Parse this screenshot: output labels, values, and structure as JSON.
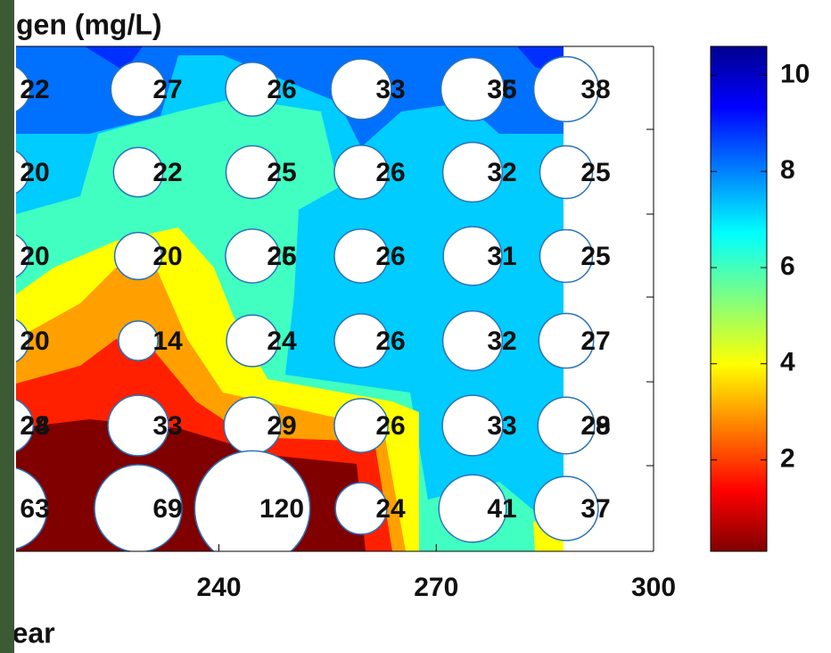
{
  "chart_data": {
    "type": "bubble",
    "title": "gen (mg/L)",
    "xlabel": "Year",
    "xlim": [
      212,
      300
    ],
    "xticks": [
      240,
      270,
      300
    ],
    "colorbar": {
      "lim": [
        0.1,
        10.6
      ],
      "ticks": [
        2,
        4,
        6,
        8,
        10
      ]
    },
    "bubble_labels": [
      [
        [
          22
        ],
        [
          27
        ],
        [
          26
        ],
        [
          33
        ],
        [
          36,
          35
        ],
        [
          38
        ]
      ],
      [
        [
          20
        ],
        [
          22
        ],
        [
          25
        ],
        [
          26
        ],
        [
          32
        ],
        [
          25
        ]
      ],
      [
        [
          20
        ],
        [
          20
        ],
        [
          26,
          25
        ],
        [
          26
        ],
        [
          31
        ],
        [
          25
        ]
      ],
      [
        [
          20
        ],
        [
          14
        ],
        [
          24
        ],
        [
          26
        ],
        [
          32
        ],
        [
          27
        ]
      ],
      [
        [
          28,
          24
        ],
        [
          33
        ],
        [
          29
        ],
        [
          26
        ],
        [
          33
        ],
        [
          29,
          28
        ]
      ],
      [
        [
          63
        ],
        [
          69
        ],
        [
          120
        ],
        [
          24
        ],
        [
          41
        ],
        [
          37
        ]
      ]
    ]
  }
}
